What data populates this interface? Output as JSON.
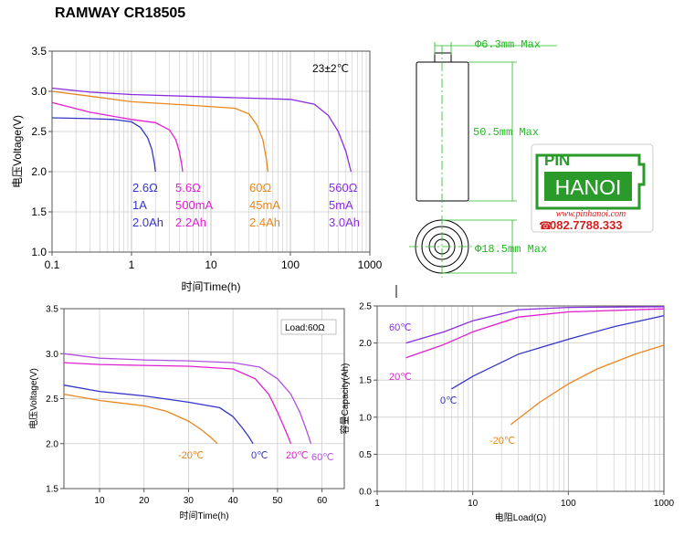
{
  "page": {
    "title": "RAMWAY CR18505"
  },
  "colors": {
    "blue": "#3434c8",
    "magenta": "#e020d0",
    "orange": "#e8871e",
    "purple": "#8a2be2",
    "plum": "#b050e0",
    "dim_green": "#22bb22",
    "logo_green": "#2a9a2a",
    "logo_red": "#d42020"
  },
  "dimension_drawing": {
    "diameter_top": "Φ6.3mm Max",
    "height": "50.5mm Max",
    "diameter": "Φ18.5mm Max"
  },
  "logo": {
    "line1": "PIN",
    "line2": "HANOI",
    "url": "www.pinhanoi.com",
    "phone": "082.7788.333"
  },
  "chart_data": [
    {
      "type": "line",
      "xscale": "log",
      "xlabel": "时间Time(h)",
      "ylabel": "电压Voltage(V)",
      "xlim": [
        0.1,
        1000
      ],
      "ylim": [
        1.0,
        3.5
      ],
      "xticks": [
        "0.1",
        "1",
        "10",
        "100",
        "1000"
      ],
      "yticks": [
        "1.0",
        "1.5",
        "2.0",
        "2.5",
        "3.0",
        "3.5"
      ],
      "annotation": "23±2℃",
      "series": [
        {
          "color_key": "blue",
          "labels": [
            "2.6Ω",
            "1A",
            "2.0Ah"
          ],
          "x": [
            0.1,
            0.3,
            0.6,
            1.0,
            1.3,
            1.6,
            1.8,
            1.95,
            2.0
          ],
          "y": [
            2.67,
            2.66,
            2.65,
            2.62,
            2.55,
            2.42,
            2.28,
            2.1,
            2.0
          ]
        },
        {
          "color_key": "magenta",
          "labels": [
            "5.6Ω",
            "500mA",
            "2.2Ah"
          ],
          "x": [
            0.1,
            0.3,
            1.0,
            2.0,
            3.0,
            3.6,
            4.0,
            4.3,
            4.4
          ],
          "y": [
            2.86,
            2.74,
            2.65,
            2.61,
            2.52,
            2.4,
            2.25,
            2.08,
            2.0
          ]
        },
        {
          "color_key": "orange",
          "labels": [
            "60Ω",
            "45mA",
            "2.4Ah"
          ],
          "x": [
            0.1,
            0.3,
            1.0,
            5.0,
            20,
            30,
            38,
            45,
            50,
            52
          ],
          "y": [
            3.0,
            2.94,
            2.87,
            2.83,
            2.79,
            2.72,
            2.58,
            2.4,
            2.15,
            2.0
          ]
        },
        {
          "color_key": "purple",
          "labels": [
            "560Ω",
            "5mA",
            "3.0Ah"
          ],
          "x": [
            0.1,
            0.3,
            1.0,
            10,
            100,
            200,
            300,
            400,
            500,
            580
          ],
          "y": [
            3.04,
            2.99,
            2.96,
            2.93,
            2.9,
            2.84,
            2.7,
            2.5,
            2.25,
            2.0
          ]
        }
      ]
    },
    {
      "type": "line",
      "xlabel": "时间Time(h)",
      "ylabel": "电压Voltage(V)",
      "xlim": [
        2,
        65
      ],
      "ylim": [
        1.5,
        3.5
      ],
      "xticks": [
        "10",
        "20",
        "30",
        "40",
        "50",
        "60"
      ],
      "yticks": [
        "1.5",
        "2.0",
        "2.5",
        "3.0",
        "3.5"
      ],
      "annotation": "Load:60Ω",
      "series": [
        {
          "name": "-20℃",
          "color_key": "orange",
          "x": [
            2,
            10,
            20,
            25,
            30,
            33,
            35,
            36.5
          ],
          "y": [
            2.55,
            2.48,
            2.42,
            2.36,
            2.25,
            2.15,
            2.07,
            2.0
          ]
        },
        {
          "name": "0℃",
          "color_key": "blue",
          "x": [
            2,
            10,
            20,
            30,
            37,
            40,
            42,
            43.5,
            44.5
          ],
          "y": [
            2.65,
            2.58,
            2.53,
            2.46,
            2.4,
            2.3,
            2.18,
            2.08,
            2.0
          ]
        },
        {
          "name": "20℃",
          "color_key": "magenta",
          "x": [
            2,
            10,
            20,
            30,
            40,
            45,
            48,
            50,
            52,
            53
          ],
          "y": [
            2.9,
            2.88,
            2.87,
            2.86,
            2.83,
            2.72,
            2.55,
            2.35,
            2.12,
            2.0
          ]
        },
        {
          "name": "60℃",
          "color_key": "plum",
          "x": [
            2,
            10,
            20,
            30,
            40,
            46,
            50,
            53,
            55,
            56.5,
            57.5
          ],
          "y": [
            3.0,
            2.95,
            2.93,
            2.92,
            2.9,
            2.85,
            2.72,
            2.55,
            2.35,
            2.15,
            2.0
          ]
        }
      ]
    },
    {
      "type": "line",
      "xscale": "log",
      "xlabel": "电阻Load(Ω)",
      "ylabel": "容量Capacity(Ah)",
      "xlim": [
        1,
        1000
      ],
      "ylim": [
        0.0,
        2.5
      ],
      "xticks": [
        "1",
        "10",
        "100",
        "1000"
      ],
      "yticks": [
        "0.0",
        "0.5",
        "1.0",
        "1.5",
        "2.0",
        "2.5"
      ],
      "series": [
        {
          "name": "-20℃",
          "color_key": "orange",
          "x": [
            25,
            50,
            100,
            200,
            500,
            1000
          ],
          "y": [
            0.9,
            1.2,
            1.45,
            1.65,
            1.85,
            1.97
          ]
        },
        {
          "name": "0℃",
          "color_key": "blue",
          "x": [
            6,
            10,
            30,
            100,
            300,
            1000
          ],
          "y": [
            1.38,
            1.55,
            1.85,
            2.05,
            2.22,
            2.37
          ]
        },
        {
          "name": "20℃",
          "color_key": "magenta",
          "x": [
            2,
            5,
            10,
            30,
            100,
            1000
          ],
          "y": [
            1.8,
            1.98,
            2.15,
            2.35,
            2.42,
            2.46
          ]
        },
        {
          "name": "60℃",
          "color_key": "purple",
          "x": [
            2,
            5,
            10,
            30,
            100,
            1000
          ],
          "y": [
            2.0,
            2.15,
            2.3,
            2.45,
            2.48,
            2.49
          ]
        }
      ]
    }
  ]
}
